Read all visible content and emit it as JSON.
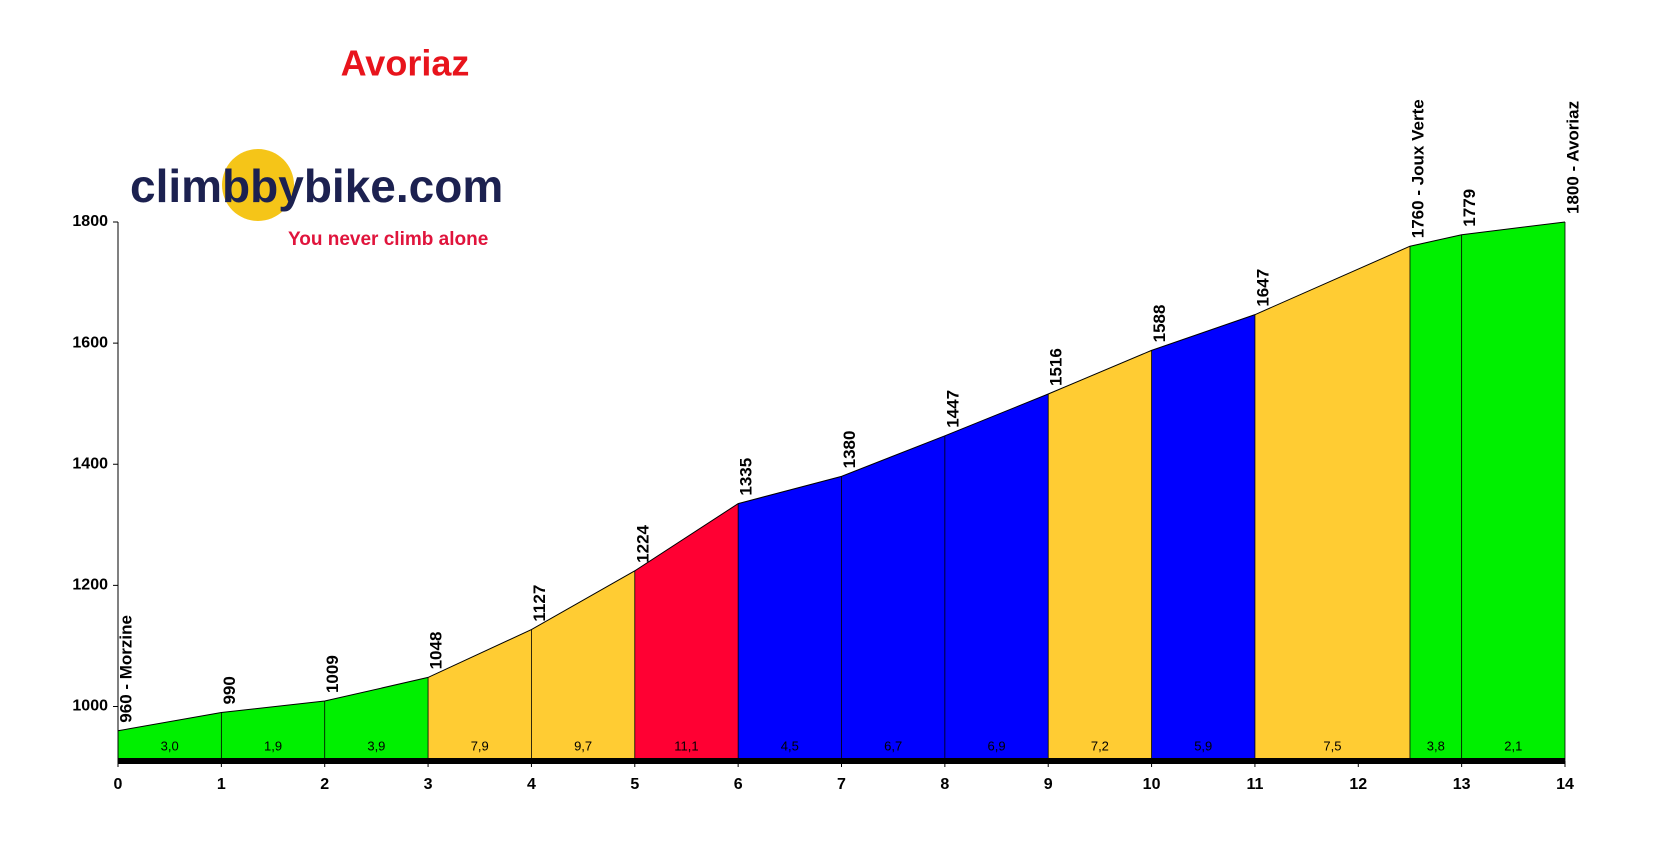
{
  "logo": {
    "name": "climbbybike.com",
    "slogan": "You never climb alone"
  },
  "chart_data": {
    "type": "profile",
    "title": "Avoriaz",
    "x": [
      0,
      1,
      2,
      3,
      4,
      5,
      6,
      7,
      8,
      9,
      10,
      11,
      12.5,
      13,
      14
    ],
    "values": [
      960,
      990,
      1009,
      1048,
      1127,
      1224,
      1335,
      1380,
      1447,
      1516,
      1588,
      1647,
      1760,
      1779,
      1800
    ],
    "value_labels": [
      "960 - Morzine",
      "990",
      "1009",
      "1048",
      "1127",
      "1224",
      "1335",
      "1380",
      "1447",
      "1516",
      "1588",
      "1647",
      "1760 - Joux Verte",
      "1779",
      "1800 - Avoriaz"
    ],
    "segments": {
      "values": [
        3.0,
        1.9,
        3.9,
        7.9,
        9.7,
        11.1,
        4.5,
        6.7,
        6.9,
        7.2,
        5.9,
        7.5,
        3.8,
        2.1
      ],
      "value_labels": [
        "3,0",
        "1,9",
        "3,9",
        "7,9",
        "9,7",
        "11,1",
        "4,5",
        "6,7",
        "6,9",
        "7,2",
        "5,9",
        "7,5",
        "3,8",
        "2,1"
      ],
      "colors": [
        "#00f000",
        "#00f000",
        "#00f000",
        "#ffcc33",
        "#ffcc33",
        "#ff0033",
        "#0000ff",
        "#0000ff",
        "#0000ff",
        "#ffcc33",
        "#0000ff",
        "#ffcc33",
        "#00f000",
        "#00f000"
      ]
    },
    "xlim": [
      0,
      14
    ],
    "xticks": [
      0,
      1,
      2,
      3,
      4,
      5,
      6,
      7,
      8,
      9,
      10,
      11,
      12,
      13,
      14
    ],
    "ylim": [
      910,
      1800
    ],
    "yticks": [
      1000,
      1200,
      1400,
      1600,
      1800
    ]
  }
}
